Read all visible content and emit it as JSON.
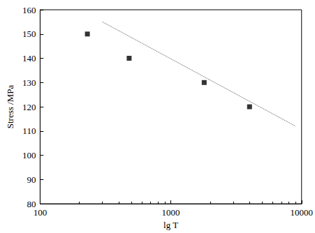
{
  "chart_data": {
    "type": "scatter",
    "x_label": "lg T",
    "y_label": "Stress /MPa",
    "log": "x",
    "grid": false,
    "xlim": [
      100,
      10000
    ],
    "xticks": [
      100,
      1000,
      10000
    ],
    "ylim": [
      80,
      160
    ],
    "yticks": [
      80,
      90,
      100,
      110,
      120,
      130,
      140,
      150,
      160
    ],
    "series": [
      {
        "type": "scatter",
        "marker": "square",
        "color": "#000000",
        "x": [
          230,
          480,
          1800,
          4000
        ],
        "values": [
          150,
          140,
          130,
          120
        ]
      },
      {
        "type": "line",
        "line_style": "dotted",
        "color": "#555555",
        "x": [
          300,
          9000
        ],
        "values": [
          155,
          112
        ]
      }
    ]
  }
}
